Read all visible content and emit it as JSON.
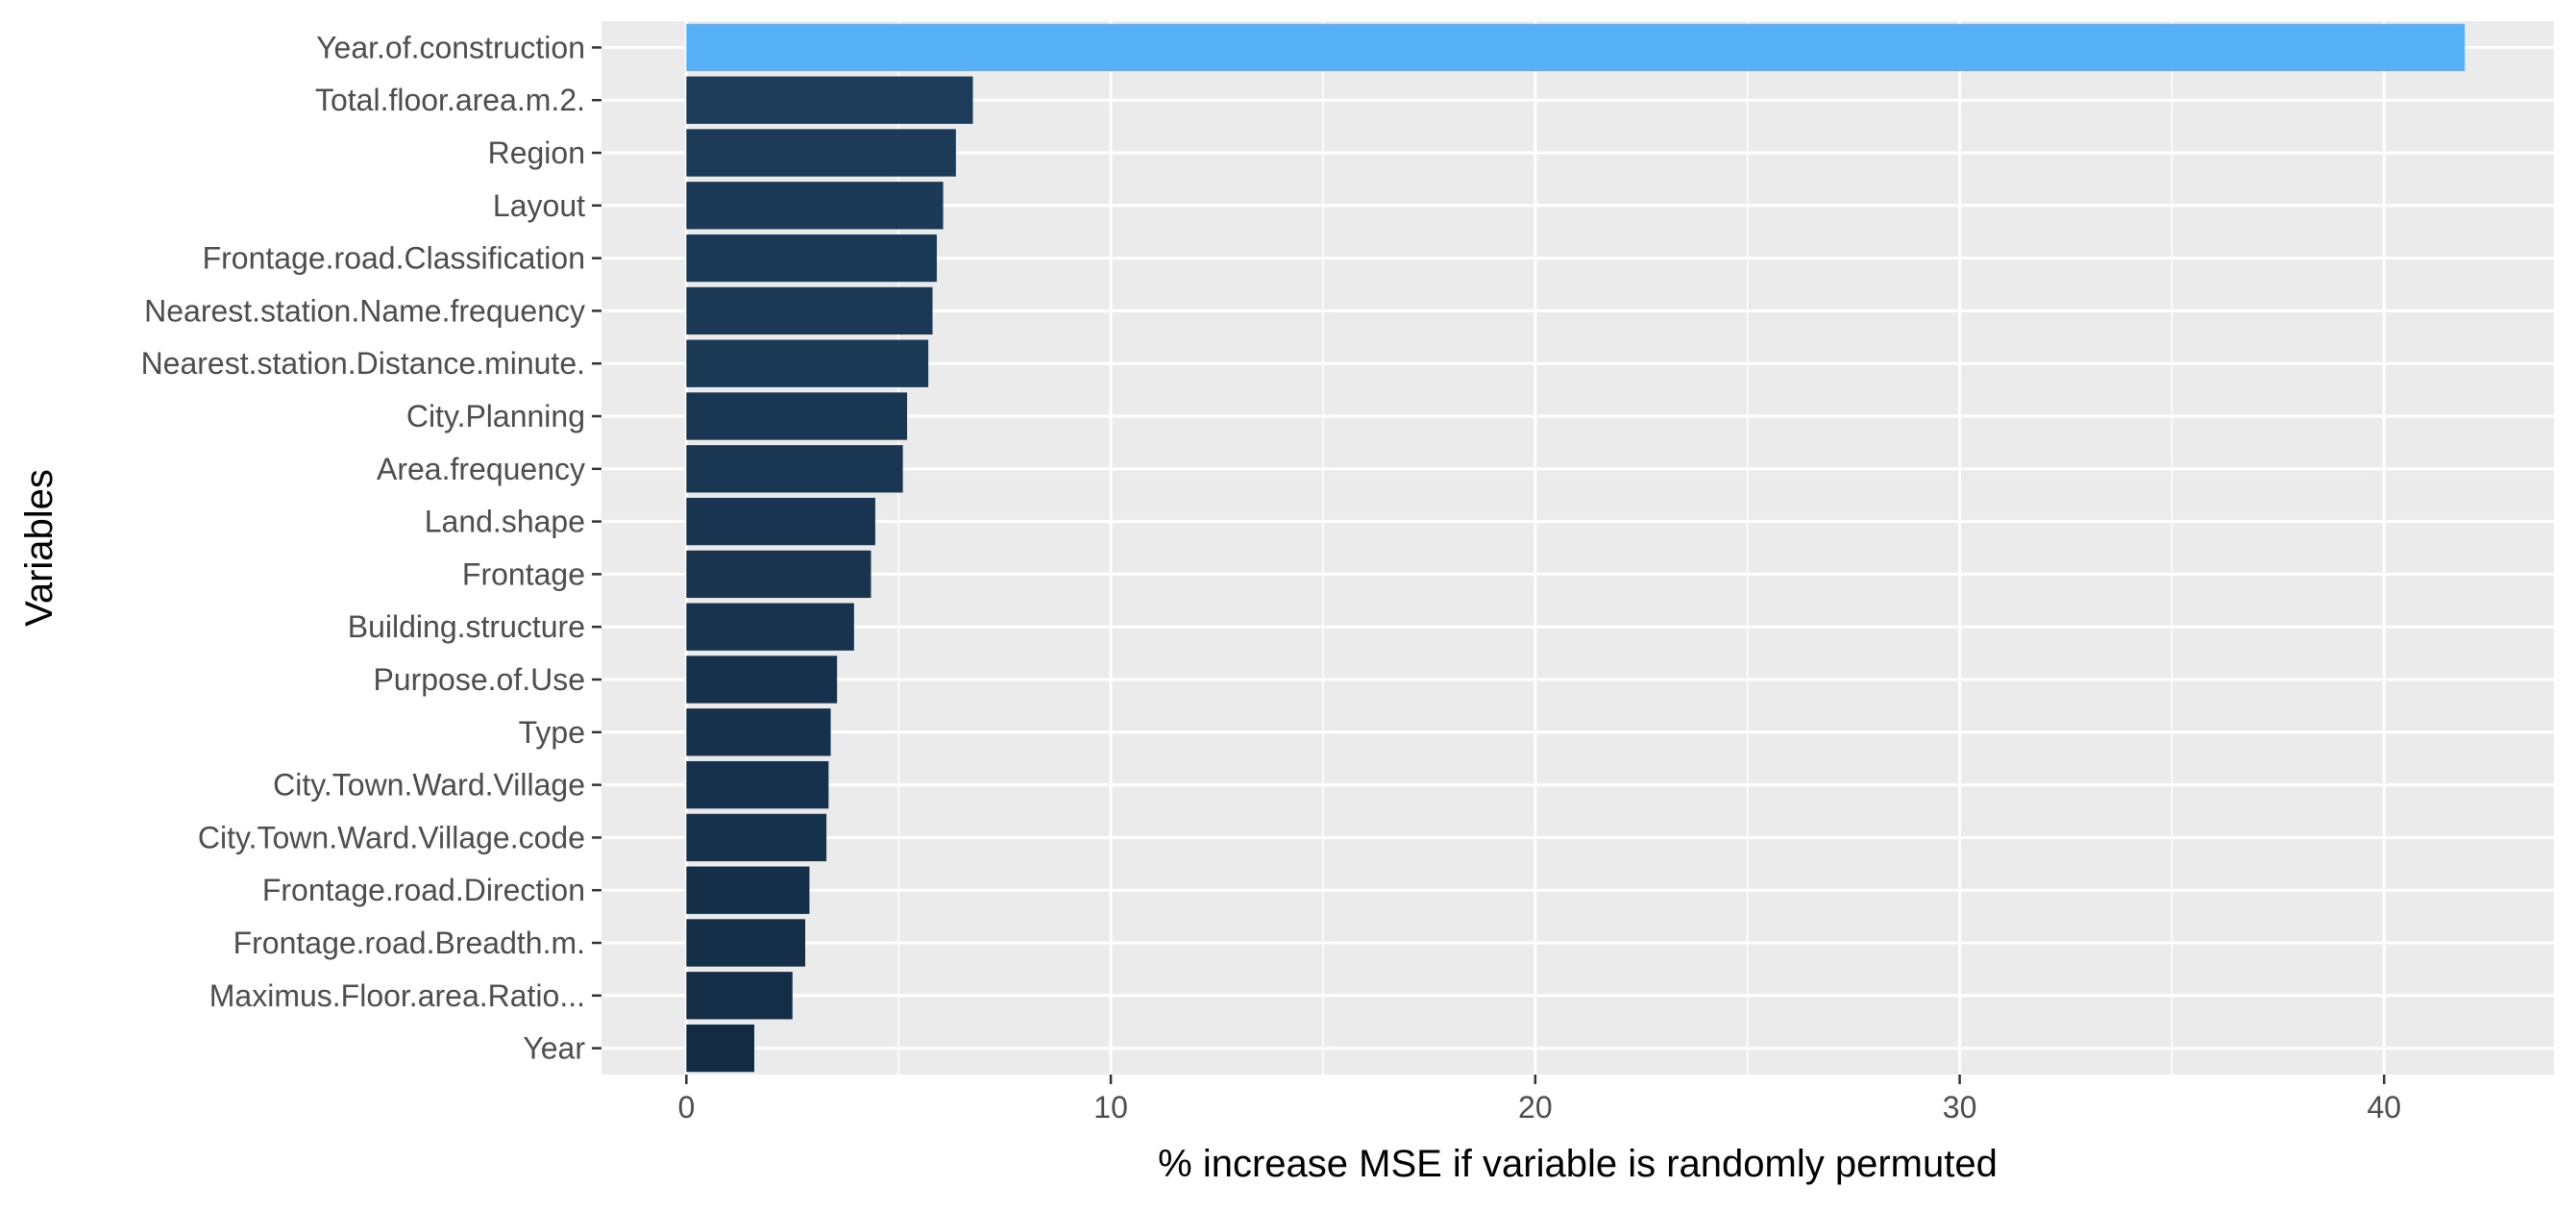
{
  "chart_data": {
    "type": "bar",
    "orientation": "horizontal",
    "title": "",
    "xlabel": "% increase MSE if variable is randomly permuted",
    "ylabel": "Variables",
    "xlim": [
      -2,
      44
    ],
    "x_ticks": [
      0,
      10,
      20,
      30,
      40
    ],
    "grid": true,
    "legend": "none",
    "categories": [
      "Year.of.construction",
      "Total.floor.area.m.2.",
      "Region",
      "Layout",
      "Frontage.road.Classification",
      "Nearest.station.Name.frequency",
      "Nearest.station.Distance.minute.",
      "City.Planning",
      "Area.frequency",
      "Land.shape",
      "Frontage",
      "Building.structure",
      "Purpose.of.Use",
      "Type",
      "City.Town.Ward.Village",
      "City.Town.Ward.Village.code",
      "Frontage.road.Direction",
      "Frontage.road.Breadth.m.",
      "Maximus.Floor.area.Ratio...",
      "Year"
    ],
    "values": [
      41.9,
      6.75,
      6.35,
      6.05,
      5.9,
      5.8,
      5.7,
      5.2,
      5.1,
      4.45,
      4.35,
      3.95,
      3.55,
      3.4,
      3.35,
      3.3,
      2.9,
      2.8,
      2.5,
      1.6
    ],
    "colors": {
      "panel_background": "#EBEBEB",
      "gridline": "#FFFFFF",
      "fill_low": "#132B43",
      "fill_high": "#56B1F7",
      "axis_text": "#4D4D4D",
      "axis_title": "#000000"
    }
  }
}
